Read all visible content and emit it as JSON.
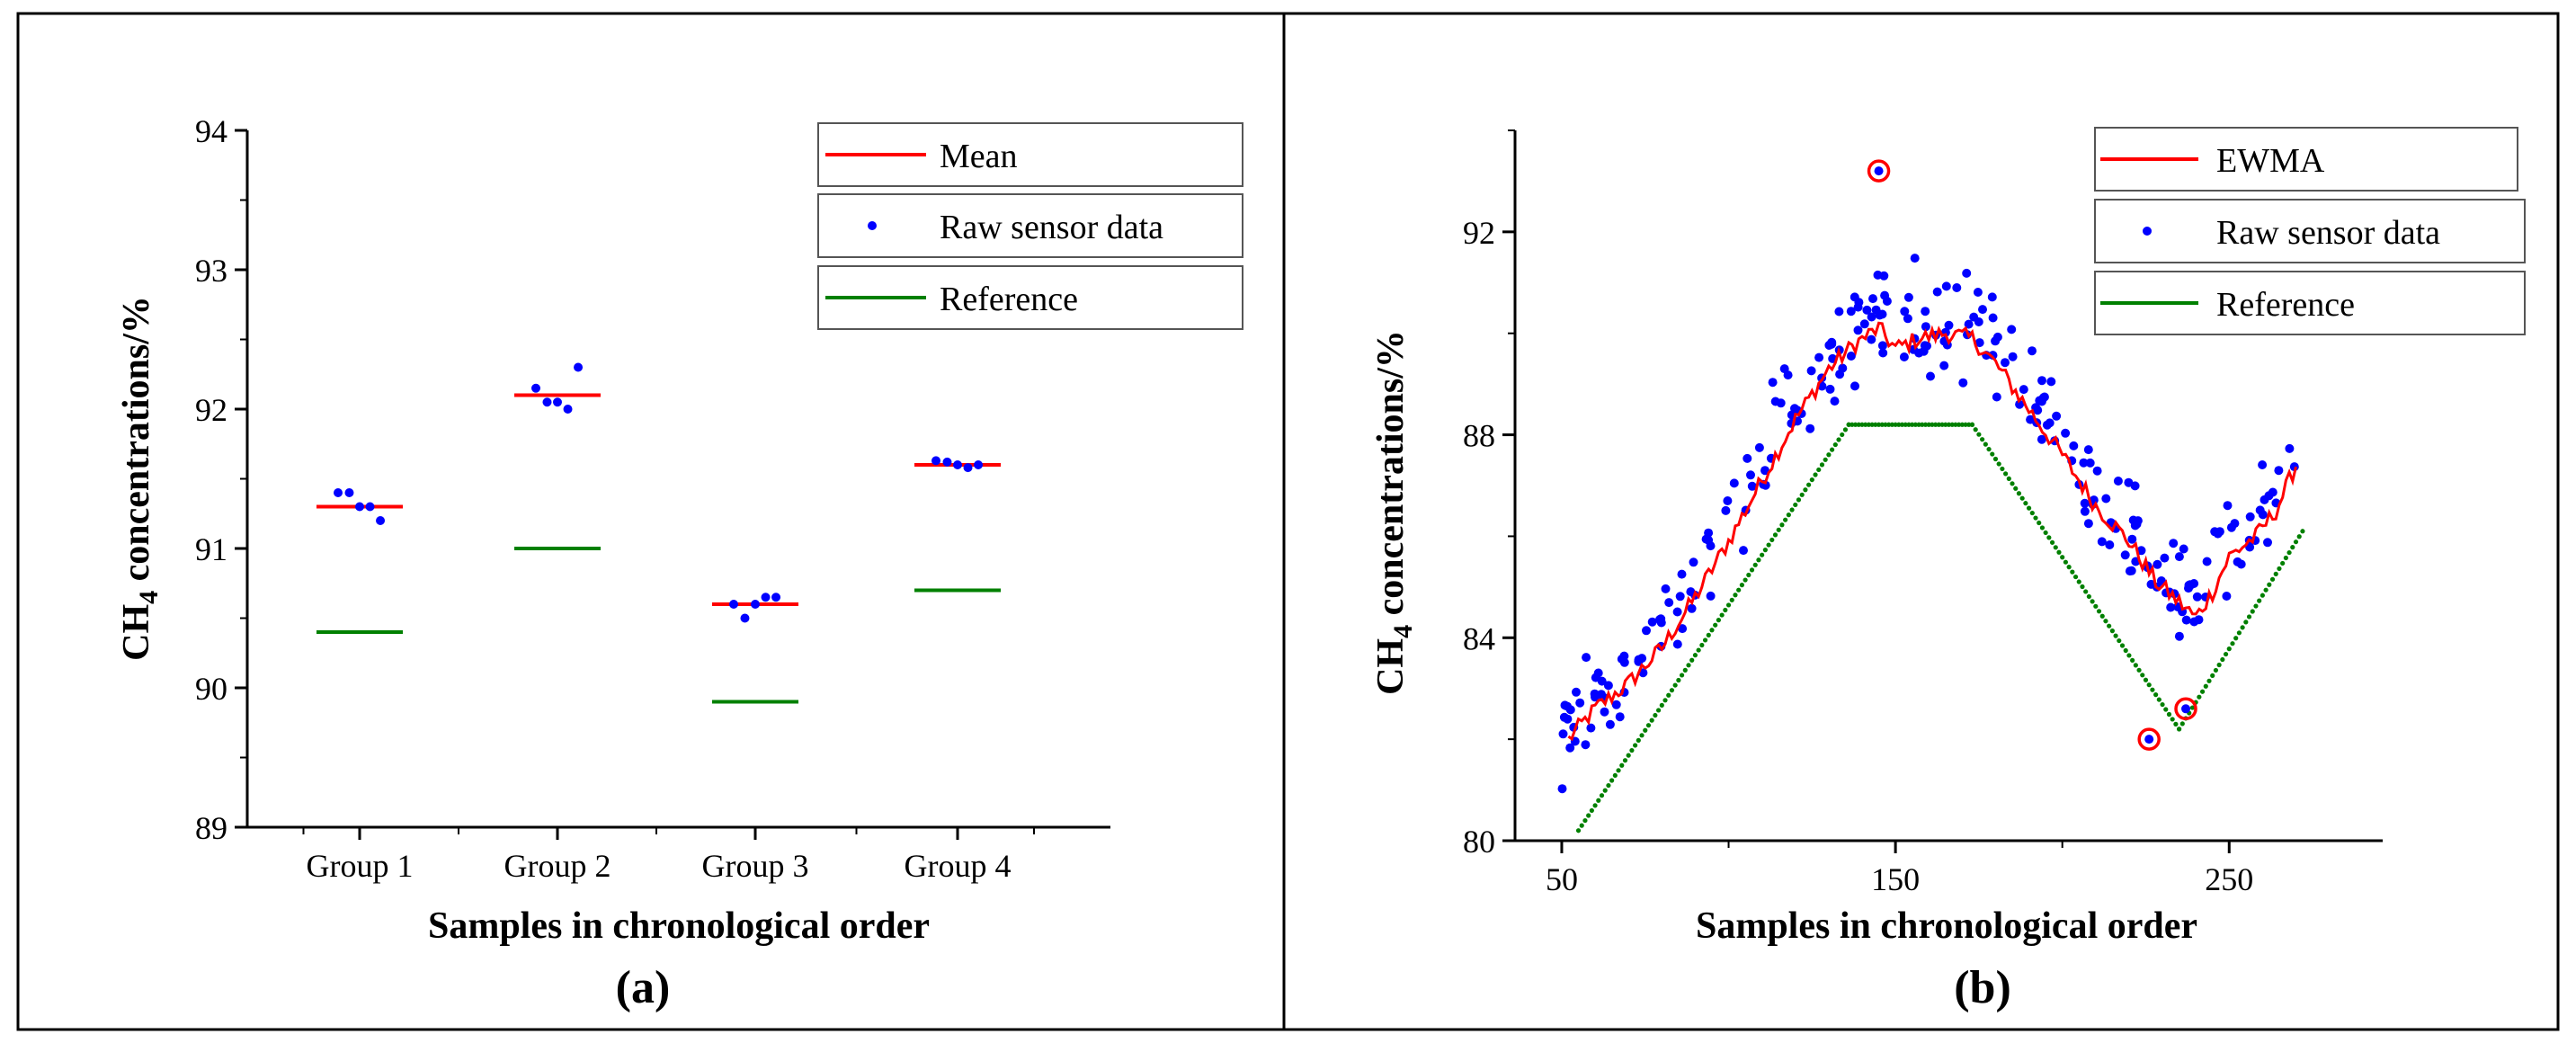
{
  "colors": {
    "mean": "#ff0000",
    "ewma": "#ff0000",
    "raw": "#0000ff",
    "reference": "#008000",
    "axis": "#000000"
  },
  "chart_data": [
    {
      "id": "a",
      "panel_label": "a",
      "type": "scatter",
      "xlabel": "Samples in chronological order",
      "ylabel": "CH4 concentrations/%",
      "ylabel_main": "CH",
      "ylabel_sub": "4",
      "ylabel_rest": " concentrations/%",
      "ylim": [
        89,
        94
      ],
      "yticks": [
        89,
        90,
        91,
        92,
        93,
        94
      ],
      "categories": [
        "Group 1",
        "Group 2",
        "Group 3",
        "Group 4"
      ],
      "legend_placement": "top-right",
      "legend": [
        "Mean",
        "Raw sensor data",
        "Reference"
      ],
      "series": [
        {
          "name": "Mean",
          "kind": "segment",
          "values": [
            91.3,
            92.1,
            90.6,
            91.6
          ]
        },
        {
          "name": "Raw sensor data",
          "kind": "points",
          "points": [
            {
              "group": 0,
              "offset": -0.25,
              "y": 91.4
            },
            {
              "group": 0,
              "offset": -0.12,
              "y": 91.4
            },
            {
              "group": 0,
              "offset": 0.0,
              "y": 91.3
            },
            {
              "group": 0,
              "offset": 0.12,
              "y": 91.3
            },
            {
              "group": 0,
              "offset": 0.24,
              "y": 91.2
            },
            {
              "group": 1,
              "offset": -0.25,
              "y": 92.15
            },
            {
              "group": 1,
              "offset": -0.12,
              "y": 92.05
            },
            {
              "group": 1,
              "offset": 0.0,
              "y": 92.05
            },
            {
              "group": 1,
              "offset": 0.12,
              "y": 92.0
            },
            {
              "group": 1,
              "offset": 0.24,
              "y": 92.3
            },
            {
              "group": 2,
              "offset": -0.25,
              "y": 90.6
            },
            {
              "group": 2,
              "offset": -0.12,
              "y": 90.5
            },
            {
              "group": 2,
              "offset": 0.0,
              "y": 90.6
            },
            {
              "group": 2,
              "offset": 0.12,
              "y": 90.65
            },
            {
              "group": 2,
              "offset": 0.24,
              "y": 90.65
            },
            {
              "group": 3,
              "offset": -0.25,
              "y": 91.63
            },
            {
              "group": 3,
              "offset": -0.12,
              "y": 91.62
            },
            {
              "group": 3,
              "offset": 0.0,
              "y": 91.6
            },
            {
              "group": 3,
              "offset": 0.12,
              "y": 91.58
            },
            {
              "group": 3,
              "offset": 0.24,
              "y": 91.6
            }
          ]
        },
        {
          "name": "Reference",
          "kind": "segment",
          "values": [
            90.4,
            91.0,
            89.9,
            90.7
          ]
        }
      ]
    },
    {
      "id": "b",
      "panel_label": "b",
      "type": "scatter",
      "xlabel": "Samples in chronological order",
      "ylabel": "CH4 concentrations/%",
      "ylabel_main": "CH",
      "ylabel_sub": "4",
      "ylabel_rest": " concentrations/%",
      "xlim": [
        36,
        296
      ],
      "ylim": [
        80,
        94
      ],
      "xticks": [
        50,
        150,
        250
      ],
      "yticks": [
        80,
        84,
        88,
        92
      ],
      "legend_placement": "top-right",
      "legend": [
        "EWMA",
        "Raw sensor data",
        "Reference"
      ],
      "reference": {
        "name": "Reference",
        "points": [
          [
            55,
            80.2
          ],
          [
            136,
            88.2
          ],
          [
            173,
            88.2
          ],
          [
            235,
            82.2
          ],
          [
            272,
            86.1
          ]
        ]
      },
      "ewma": {
        "name": "EWMA",
        "points": [
          [
            52,
            82.0
          ],
          [
            60,
            82.6
          ],
          [
            70,
            83.1
          ],
          [
            80,
            83.8
          ],
          [
            90,
            84.8
          ],
          [
            100,
            85.9
          ],
          [
            110,
            87.1
          ],
          [
            120,
            88.3
          ],
          [
            130,
            89.3
          ],
          [
            138,
            89.8
          ],
          [
            145,
            90.1
          ],
          [
            150,
            89.7
          ],
          [
            157,
            89.9
          ],
          [
            165,
            90.0
          ],
          [
            173,
            89.9
          ],
          [
            180,
            89.4
          ],
          [
            190,
            88.5
          ],
          [
            200,
            87.6
          ],
          [
            210,
            86.6
          ],
          [
            220,
            85.9
          ],
          [
            228,
            85.1
          ],
          [
            235,
            84.7
          ],
          [
            240,
            84.4
          ],
          [
            245,
            84.9
          ],
          [
            250,
            85.6
          ],
          [
            258,
            86.0
          ],
          [
            264,
            86.5
          ],
          [
            270,
            87.4
          ]
        ]
      },
      "outliers": [
        [
          145,
          93.2
        ],
        [
          226,
          82.0
        ],
        [
          237,
          82.6
        ]
      ],
      "raw_sensor_data": {
        "name": "Raw sensor data",
        "x_range": [
          50,
          270
        ],
        "count": 260,
        "description": "noisy raw readings scattered about the EWMA curve, spread about ±1.2%"
      }
    }
  ]
}
